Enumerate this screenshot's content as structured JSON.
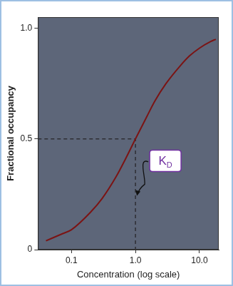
{
  "chart_data": {
    "type": "line",
    "x_label": "Concentration (log scale)",
    "y_label": "Fractional occupancy",
    "x": [
      0.04,
      0.07,
      0.1,
      0.2,
      0.3,
      0.5,
      0.7,
      1.0,
      1.5,
      2.0,
      3.0,
      5.0,
      7.0,
      10.0,
      15.0,
      18.0
    ],
    "values": [
      0.04,
      0.07,
      0.09,
      0.17,
      0.23,
      0.33,
      0.41,
      0.5,
      0.6,
      0.67,
      0.75,
      0.83,
      0.875,
      0.91,
      0.94,
      0.95
    ],
    "color": "#7b1414",
    "log": "x",
    "xlim": [
      0.03,
      20
    ],
    "xticks": [
      0.1,
      {
        "value": 1,
        "label": "1.0"
      },
      {
        "value": 10,
        "label": "10.0"
      }
    ],
    "ylim": [
      0,
      1.05
    ],
    "yticks": [
      0,
      0.5,
      {
        "value": 1,
        "label": "1.0"
      }
    ],
    "grid": false,
    "guide": {
      "x": 1.0,
      "y": 0.5
    },
    "annotations": [
      {
        "text": "K",
        "subscript": "D",
        "x": 1.0,
        "y": 0.25
      }
    ]
  }
}
